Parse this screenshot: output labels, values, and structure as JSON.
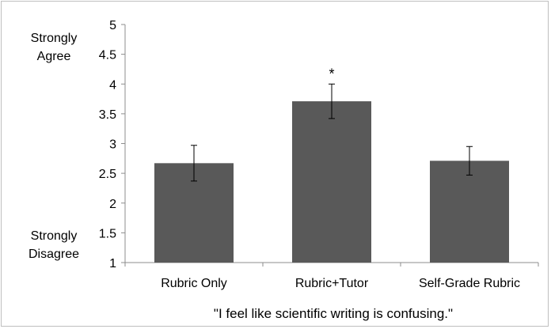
{
  "chart_data": {
    "type": "bar",
    "categories": [
      "Rubric Only",
      "Rubric+Tutor",
      "Self-Grade Rubric"
    ],
    "values": [
      2.67,
      3.71,
      2.71
    ],
    "error": [
      0.3,
      0.29,
      0.24
    ],
    "annotations": [
      "",
      "*",
      ""
    ],
    "xlabel": "\"I feel like scientific writing is confusing.\"",
    "ylim": [
      1,
      5
    ],
    "yticks": [
      "1",
      "1.5",
      "2",
      "2.5",
      "3",
      "3.5",
      "4",
      "4.5",
      "5"
    ],
    "ytick_values": [
      1,
      1.5,
      2,
      2.5,
      3,
      3.5,
      4,
      4.5,
      5
    ],
    "scale_labels": {
      "top": [
        "Strongly",
        "Agree"
      ],
      "bottom": [
        "Strongly",
        "Disagree"
      ]
    },
    "bar_color": "#595959",
    "grid": false,
    "legend": "none"
  }
}
